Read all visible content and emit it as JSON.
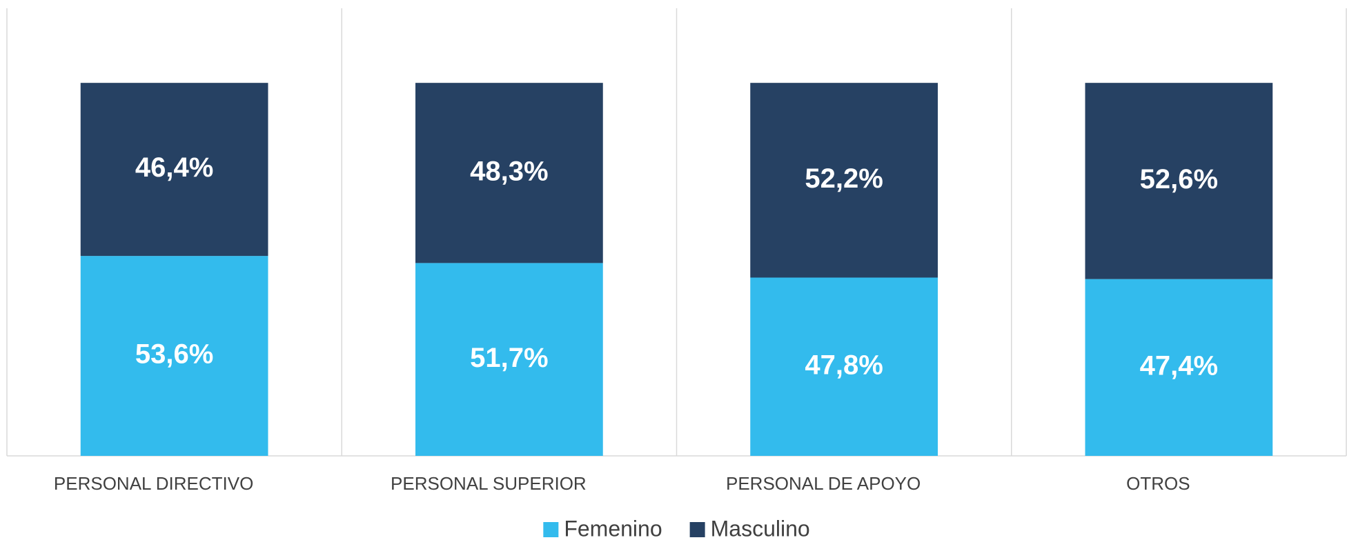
{
  "chart_data": {
    "type": "stacked_bar",
    "categories": [
      "PERSONAL DIRECTIVO",
      "PERSONAL SUPERIOR",
      "PERSONAL DE APOYO",
      "OTROS"
    ],
    "series": [
      {
        "name": "Femenino",
        "color": "#33bbed",
        "values": [
          53.6,
          51.7,
          47.8,
          47.4
        ],
        "value_labels": [
          "53,6%",
          "51,7%",
          "47,8%",
          "47,4%"
        ]
      },
      {
        "name": "Masculino",
        "color": "#264163",
        "values": [
          46.4,
          48.3,
          52.2,
          52.6
        ],
        "value_labels": [
          "46,4%",
          "48,3%",
          "52,2%",
          "52,6%"
        ]
      }
    ],
    "ylim": [
      0,
      120
    ],
    "legend": "bottom"
  }
}
